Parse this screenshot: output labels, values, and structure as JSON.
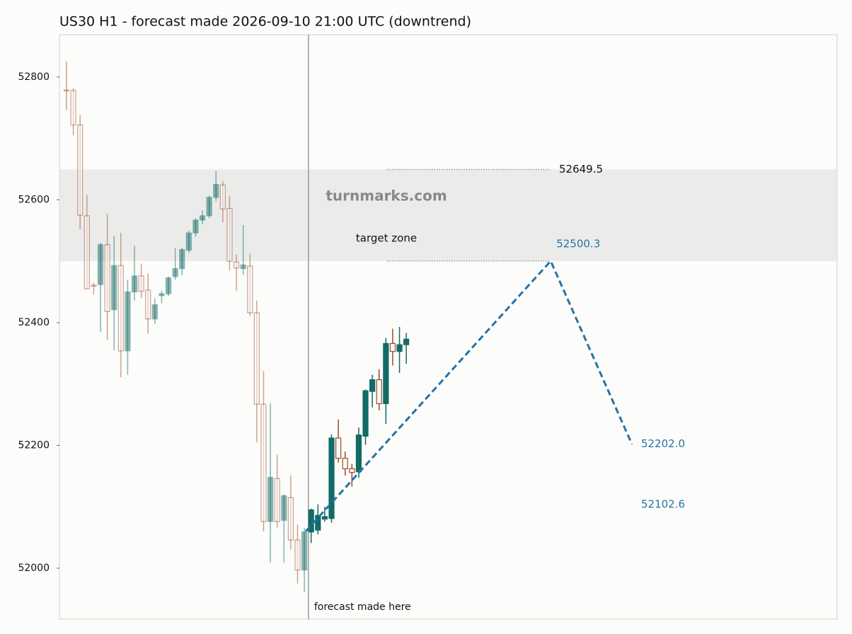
{
  "chart_data": {
    "type": "candlestick",
    "title": "US30 H1 - forecast made 2026-09-10 21:00 UTC (downtrend)",
    "x": [
      0,
      1,
      2,
      3,
      4,
      5,
      6,
      7,
      8,
      9,
      10,
      11,
      12,
      13,
      14,
      15,
      16,
      17,
      18,
      19,
      20,
      21,
      22,
      23,
      24,
      25,
      26,
      27,
      28,
      29,
      30,
      31,
      32,
      33,
      34,
      35,
      36,
      37,
      38,
      39,
      40,
      41,
      42,
      43,
      44,
      45,
      46,
      47,
      48,
      49,
      50
    ],
    "open": [
      52779,
      52778,
      52722,
      52574,
      52461,
      52462,
      52527,
      52421,
      52493,
      52354,
      52450,
      52476,
      52453,
      52406,
      52444,
      52447,
      52475,
      52488,
      52518,
      52546,
      52567,
      52574,
      52604,
      52624,
      52586,
      52499,
      52488,
      52492,
      52416,
      52267,
      52076,
      52146,
      52078,
      52115,
      52046,
      51997,
      52059,
      52062,
      52080,
      52081,
      52212,
      52179,
      52162,
      52157,
      52215,
      52288,
      52307,
      52268,
      52366,
      52353,
      52364
    ],
    "high": [
      52825,
      52782,
      52738,
      52608,
      52465,
      52530,
      52577,
      52541,
      52546,
      52470,
      52525,
      52496,
      52480,
      52440,
      52452,
      52475,
      52521,
      52522,
      52550,
      52570,
      52583,
      52607,
      52647,
      52630,
      52607,
      52511,
      52559,
      52513,
      52436,
      52321,
      52269,
      52185,
      52120,
      52151,
      52071,
      52065,
      52097,
      52104,
      52100,
      52218,
      52242,
      52190,
      52170,
      52229,
      52291,
      52315,
      52324,
      52375,
      52390,
      52393,
      52383
    ],
    "low": [
      52746,
      52705,
      52552,
      52455,
      52446,
      52385,
      52372,
      52355,
      52311,
      52315,
      52436,
      52440,
      52382,
      52398,
      52432,
      52443,
      52470,
      52477,
      52514,
      52540,
      52560,
      52570,
      52598,
      52563,
      52485,
      52452,
      52478,
      52411,
      52205,
      52060,
      52009,
      52066,
      52009,
      52030,
      51975,
      51961,
      52041,
      52055,
      52076,
      52074,
      52172,
      52151,
      52133,
      52147,
      52201,
      52262,
      52257,
      52235,
      52330,
      52318,
      52333
    ],
    "close": [
      52778,
      52722,
      52575,
      52455,
      52460,
      52527,
      52418,
      52493,
      52354,
      52450,
      52476,
      52451,
      52406,
      52429,
      52447,
      52473,
      52488,
      52519,
      52546,
      52567,
      52574,
      52604,
      52625,
      52585,
      52500,
      52489,
      52494,
      52416,
      52267,
      52076,
      52148,
      52076,
      52118,
      52046,
      51997,
      52059,
      52095,
      52086,
      52084,
      52212,
      52179,
      52162,
      52156,
      52217,
      52289,
      52307,
      52268,
      52366,
      52353,
      52364,
      52373
    ],
    "up_color": "#126b66",
    "down_color": "#9c4a2a",
    "xlim": [
      -1.04,
      113.4
    ],
    "ylim": [
      51917,
      52869
    ],
    "yticks": [
      52000,
      52200,
      52400,
      52600,
      52800
    ],
    "forecast_x": 35.6,
    "forecast_label": "forecast made here",
    "forecast": {
      "x": [
        35.2,
        71.25,
        83.2
      ],
      "values": [
        52060,
        52500.3,
        52202.0
      ],
      "value_labels": [
        null,
        "52500.3",
        "52202.0"
      ],
      "color": "#2573a6"
    },
    "target_zone": {
      "label": "target zone",
      "range": [
        52500.3,
        52649.5
      ]
    },
    "extra_level": "52102.6",
    "watermark": "turnmarks.com"
  }
}
